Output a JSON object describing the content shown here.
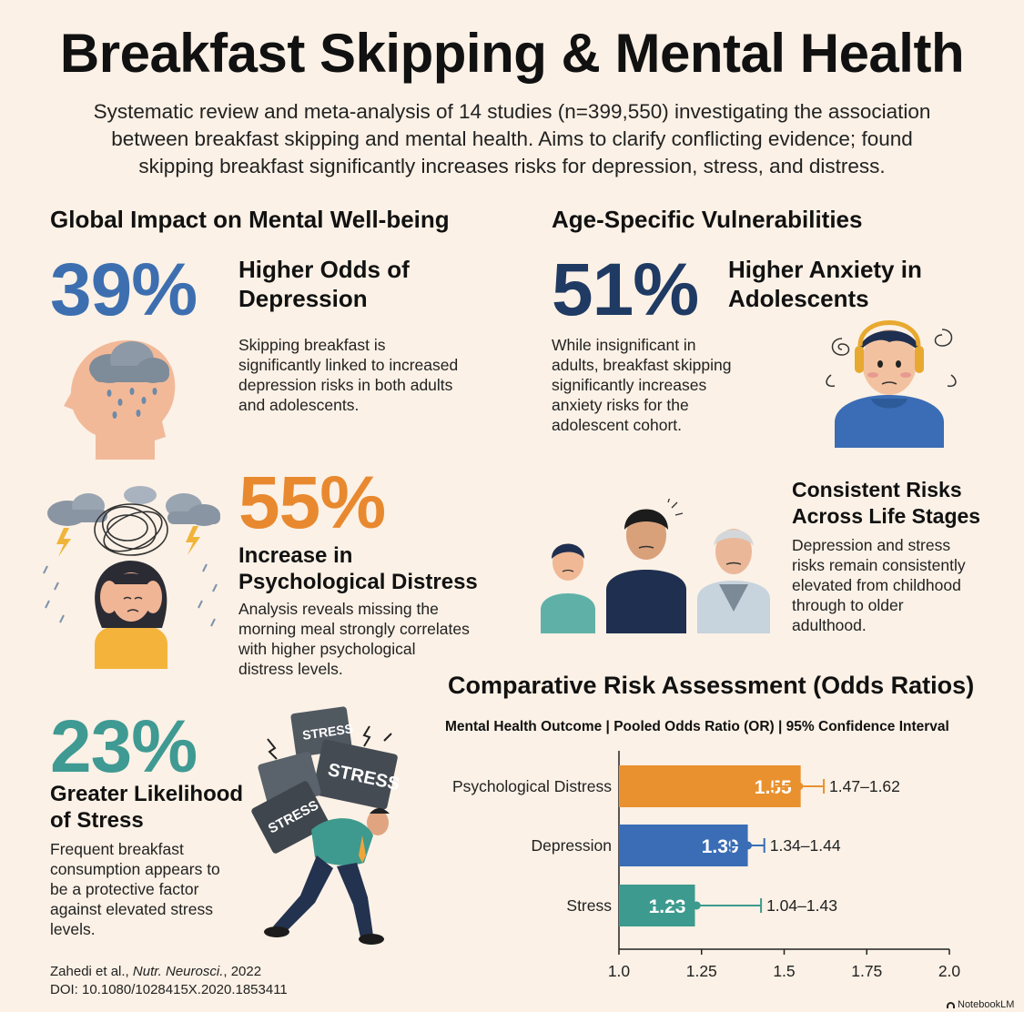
{
  "title": "Breakfast Skipping & Mental Health",
  "subtitle_lines": [
    "Systematic review and meta-analysis of 14 studies (n=399,550) investigating the association",
    "between breakfast skipping and mental health. Aims to clarify conflicting evidence; found",
    "skipping breakfast significantly increases risks for depression, stress, and distress."
  ],
  "global": {
    "section_title": "Global Impact on Mental Well-being",
    "depression": {
      "stat": "39%",
      "heading": [
        "Higher Odds of",
        "Depression"
      ],
      "desc": [
        "Skipping breakfast is",
        "significantly linked to increased",
        "depression risks in both adults",
        "and adolescents."
      ],
      "color": "#3d6fb0"
    },
    "distress": {
      "stat": "55%",
      "heading": [
        "Increase in",
        "Psychological Distress"
      ],
      "desc": [
        "Analysis reveals missing the",
        "morning meal strongly correlates",
        "with higher psychological",
        "distress levels."
      ],
      "color": "#e8892f"
    },
    "stress": {
      "stat": "23%",
      "heading": [
        "Greater Likelihood",
        "of Stress"
      ],
      "desc": [
        "Frequent breakfast",
        "consumption appears to",
        "be a protective factor",
        "against elevated stress",
        "levels."
      ],
      "color": "#3f9a93"
    }
  },
  "age": {
    "section_title": "Age-Specific Vulnerabilities",
    "anxiety": {
      "stat": "51%",
      "heading": [
        "Higher Anxiety in",
        "Adolescents"
      ],
      "desc": [
        "While insignificant in",
        "adults, breakfast skipping",
        "significantly increases",
        "anxiety risks for the",
        "adolescent cohort."
      ],
      "color": "#1f3a63"
    },
    "life_stages": {
      "heading": [
        "Consistent Risks",
        "Across Life Stages"
      ],
      "desc": [
        "Depression and stress",
        "risks remain consistently",
        "elevated from childhood",
        "through to older",
        "adulthood."
      ]
    }
  },
  "illustration_labels": {
    "stress_block": "STRESS"
  },
  "comparative": {
    "title": "Comparative Risk Assessment (Odds Ratios)",
    "header": "Mental Health Outcome | Pooled Odds Ratio (OR) | 95% Confidence Interval"
  },
  "chart_data": {
    "type": "bar",
    "orientation": "horizontal",
    "title": "Comparative Risk Assessment (Odds Ratios)",
    "categories": [
      "Psychological Distress",
      "Depression",
      "Stress"
    ],
    "values": [
      1.55,
      1.39,
      1.23
    ],
    "ci_labels": [
      "1.47–1.62",
      "1.34–1.44",
      "1.04–1.43"
    ],
    "ci": [
      [
        1.47,
        1.62
      ],
      [
        1.34,
        1.44
      ],
      [
        1.04,
        1.43
      ]
    ],
    "colors": [
      "#e8912e",
      "#3a6db5",
      "#3d9a8f"
    ],
    "xlim": [
      1.0,
      2.0
    ],
    "xticks": [
      "1.0",
      "1.25",
      "1.5",
      "1.75",
      "2.0"
    ],
    "xtick_values": [
      1.0,
      1.25,
      1.5,
      1.75,
      2.0
    ],
    "grid": false,
    "legend": "none"
  },
  "citation": {
    "authors": "Zahedi et al., ",
    "journal": "Nutr. Neurosci.",
    "year": ", 2022",
    "doi": "DOI: 10.1080/1028415X.2020.1853411"
  },
  "watermark": "NotebookLM"
}
